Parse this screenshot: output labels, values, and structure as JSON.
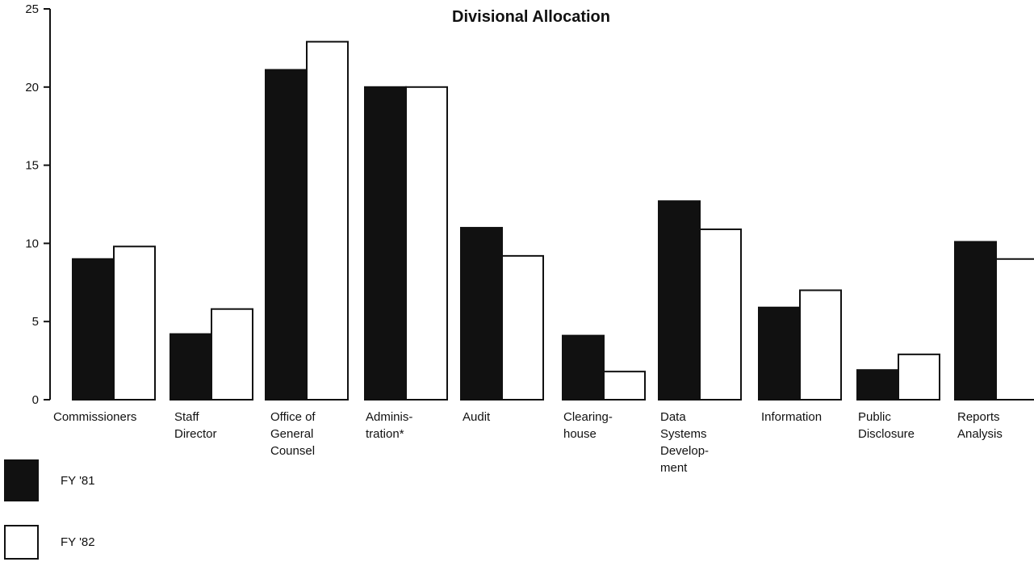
{
  "chart_data": {
    "type": "bar",
    "title": "Divisional Allocation",
    "xlabel": "",
    "ylabel": "",
    "ylim": [
      0,
      25
    ],
    "yticks": [
      0,
      5,
      10,
      15,
      20,
      25
    ],
    "grid": false,
    "legend_position": "bottom-left",
    "categories": [
      [
        "Commissioners"
      ],
      [
        "Staff",
        "Director"
      ],
      [
        "Office of",
        "General",
        "Counsel"
      ],
      [
        "Adminis-",
        "tration*"
      ],
      [
        "Audit"
      ],
      [
        "Clearing-",
        "house"
      ],
      [
        "Data",
        "Systems",
        "Develop-",
        "ment"
      ],
      [
        "Information"
      ],
      [
        "Public",
        "Disclosure"
      ],
      [
        "Reports",
        "Analysis"
      ]
    ],
    "series": [
      {
        "name": "FY '81",
        "fill": "#111111",
        "values": [
          9,
          4.2,
          21.1,
          20,
          11,
          4.1,
          12.7,
          5.9,
          1.9,
          10.1
        ]
      },
      {
        "name": "FY '82",
        "fill": "#ffffff",
        "values": [
          9.8,
          5.8,
          22.9,
          20,
          9.2,
          1.8,
          10.9,
          7,
          2.9,
          9
        ]
      }
    ]
  }
}
